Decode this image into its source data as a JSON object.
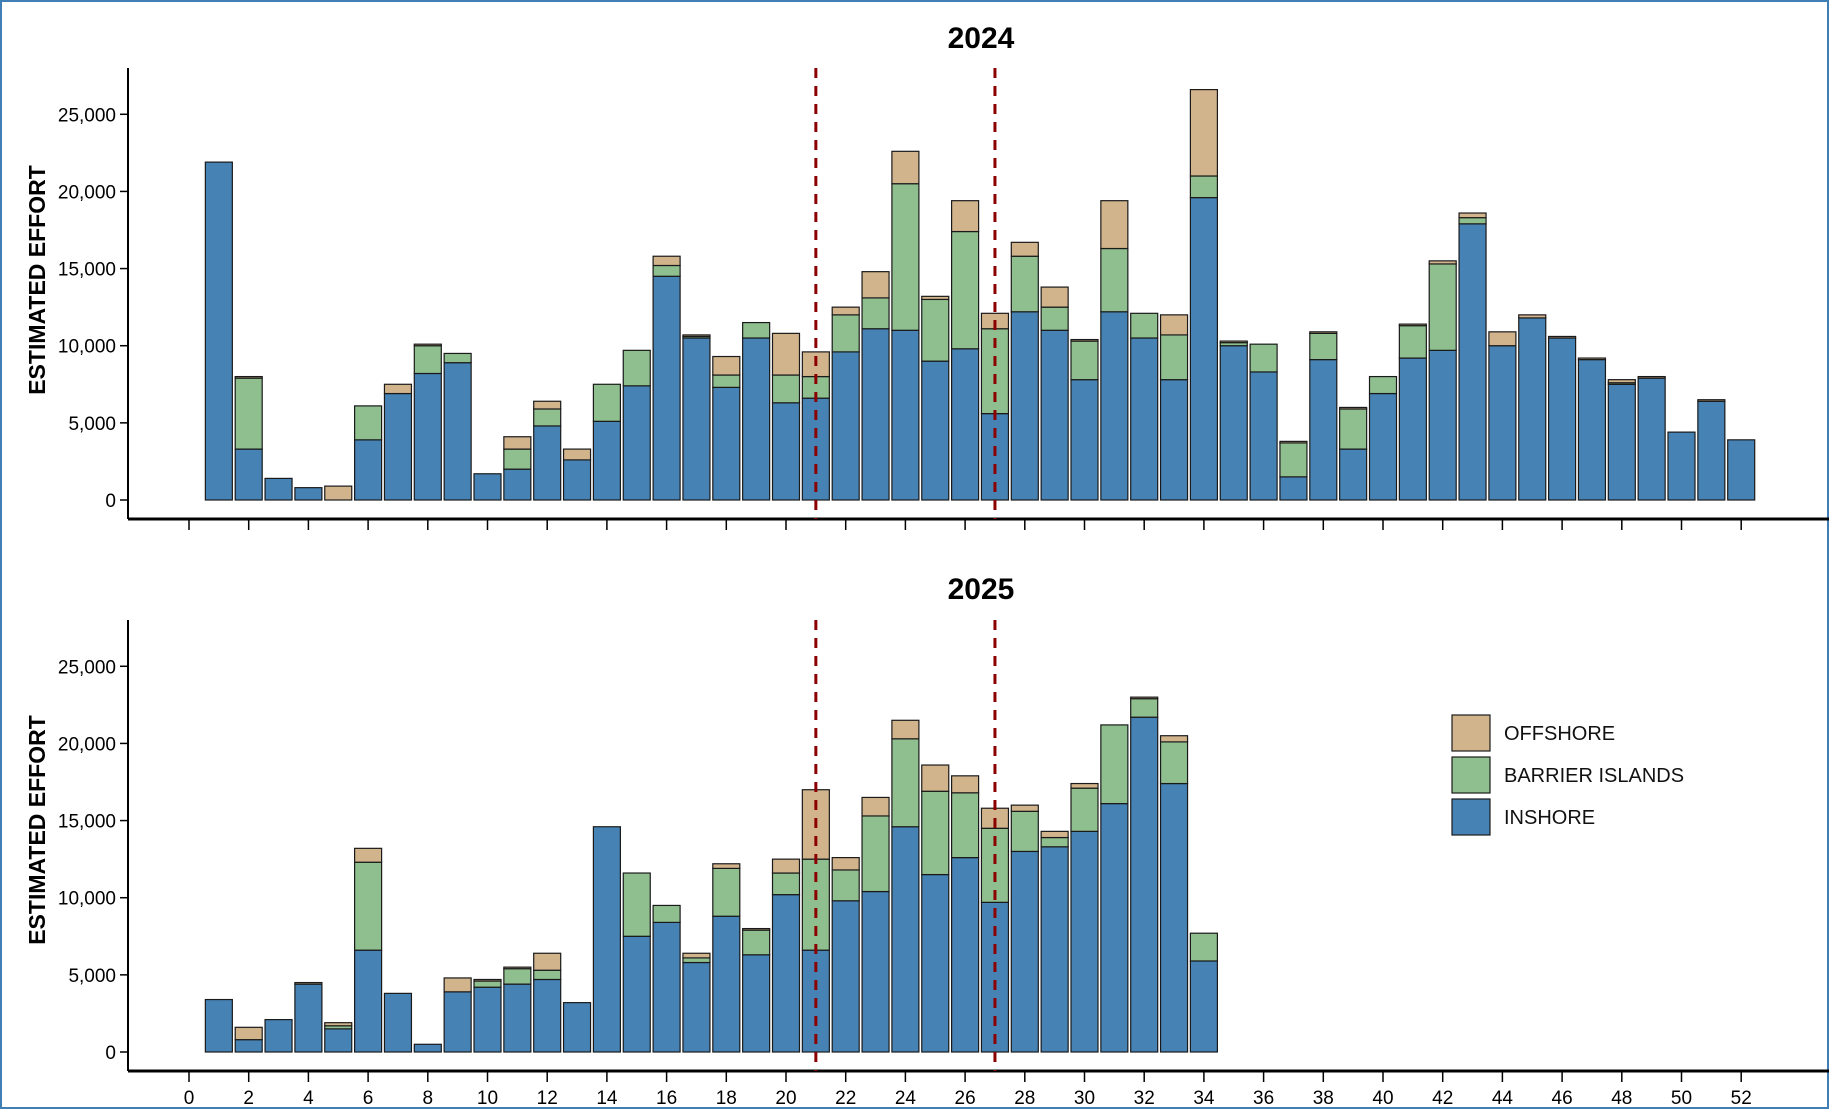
{
  "colors": {
    "offshore": "#d2b48c",
    "barrier": "#8fbf8f",
    "inshore": "#4682b4",
    "marker": "#8b0000",
    "frame": "#3f7fb5"
  },
  "chart_data": [
    {
      "type": "bar",
      "stacked": true,
      "title": "2024",
      "ylabel": "ESTIMATED EFFORT",
      "ylim": [
        0,
        28000
      ],
      "yticks": [
        "0",
        "5,000",
        "10,000",
        "15,000",
        "20,000",
        "25,000"
      ],
      "xlim": [
        0,
        53
      ],
      "x_tick_labels": [],
      "marker_weeks": [
        21,
        27
      ],
      "weeks": [
        1,
        2,
        3,
        4,
        5,
        6,
        7,
        8,
        9,
        10,
        11,
        12,
        13,
        14,
        15,
        16,
        17,
        18,
        19,
        20,
        21,
        22,
        23,
        24,
        25,
        26,
        27,
        28,
        29,
        30,
        31,
        32,
        33,
        34,
        35,
        36,
        37,
        38,
        39,
        40,
        41,
        42,
        43,
        44,
        45,
        46,
        47,
        48,
        49,
        50,
        51,
        52
      ],
      "series": [
        {
          "name": "INSHORE",
          "values": [
            21900,
            3300,
            1400,
            800,
            0,
            3900,
            6900,
            8200,
            8900,
            1700,
            2000,
            4800,
            2600,
            5100,
            7400,
            14500,
            10500,
            7300,
            10500,
            6300,
            6600,
            9600,
            11100,
            11000,
            9000,
            9800,
            5600,
            12200,
            11000,
            7800,
            12200,
            10500,
            7800,
            19600,
            10000,
            8300,
            1500,
            9100,
            3300,
            6900,
            9200,
            9700,
            17900,
            10000,
            11800,
            10500,
            9100,
            7500,
            7900,
            4400,
            6400,
            3900
          ]
        },
        {
          "name": "BARRIER ISLANDS",
          "values": [
            0,
            4600,
            0,
            0,
            0,
            2200,
            0,
            1800,
            600,
            0,
            1300,
            1100,
            0,
            2400,
            2300,
            700,
            100,
            800,
            1000,
            1800,
            1400,
            2400,
            2000,
            9500,
            4000,
            7600,
            5500,
            3600,
            1500,
            2500,
            4100,
            1600,
            2900,
            1400,
            200,
            1800,
            2200,
            1700,
            2600,
            1100,
            2100,
            5600,
            400,
            0,
            0,
            0,
            0,
            100,
            0,
            0,
            0,
            0
          ]
        },
        {
          "name": "OFFSHORE",
          "values": [
            0,
            100,
            0,
            0,
            900,
            0,
            600,
            100,
            0,
            0,
            800,
            500,
            700,
            0,
            0,
            600,
            100,
            1200,
            0,
            2700,
            1600,
            500,
            1700,
            2100,
            200,
            2000,
            1000,
            900,
            1300,
            100,
            3100,
            0,
            1300,
            5600,
            100,
            0,
            100,
            100,
            100,
            0,
            100,
            200,
            300,
            900,
            200,
            100,
            100,
            200,
            100,
            0,
            100,
            0
          ]
        }
      ]
    },
    {
      "type": "bar",
      "stacked": true,
      "title": "2025",
      "ylabel": "ESTIMATED EFFORT",
      "ylim": [
        0,
        28000
      ],
      "yticks": [
        "0",
        "5,000",
        "10,000",
        "15,000",
        "20,000",
        "25,000"
      ],
      "xlim": [
        0,
        53
      ],
      "x_tick_labels": [
        "0",
        "2",
        "4",
        "6",
        "8",
        "10",
        "12",
        "14",
        "16",
        "18",
        "20",
        "22",
        "24",
        "26",
        "28",
        "30",
        "32",
        "34",
        "36",
        "38",
        "40",
        "42",
        "44",
        "46",
        "48",
        "50",
        "52"
      ],
      "marker_weeks": [
        21,
        27
      ],
      "weeks": [
        1,
        2,
        3,
        4,
        5,
        6,
        7,
        8,
        9,
        10,
        11,
        12,
        13,
        14,
        15,
        16,
        17,
        18,
        19,
        20,
        21,
        22,
        23,
        24,
        25,
        26,
        27,
        28,
        29,
        30,
        31,
        32,
        33,
        34
      ],
      "series": [
        {
          "name": "INSHORE",
          "values": [
            3400,
            800,
            2100,
            4400,
            1500,
            6600,
            3800,
            500,
            3900,
            4200,
            4400,
            4700,
            3200,
            14600,
            7500,
            8400,
            5800,
            8800,
            6300,
            10200,
            6600,
            9800,
            10400,
            14600,
            11500,
            12600,
            9700,
            13000,
            13300,
            14300,
            16100,
            21700,
            17400,
            5900
          ]
        },
        {
          "name": "BARRIER ISLANDS",
          "values": [
            0,
            0,
            0,
            0,
            200,
            5700,
            0,
            0,
            0,
            400,
            1000,
            600,
            0,
            0,
            4100,
            1100,
            300,
            3100,
            1600,
            1400,
            5900,
            2000,
            4900,
            5700,
            5400,
            4200,
            4800,
            2600,
            600,
            2800,
            5100,
            1200,
            2700,
            1800
          ]
        },
        {
          "name": "OFFSHORE",
          "values": [
            0,
            800,
            0,
            100,
            200,
            900,
            0,
            0,
            900,
            100,
            100,
            1100,
            0,
            0,
            0,
            0,
            300,
            300,
            100,
            900,
            4500,
            800,
            1200,
            1200,
            1700,
            1100,
            1300,
            400,
            400,
            300,
            0,
            100,
            400,
            0
          ]
        }
      ]
    }
  ],
  "legend": [
    {
      "label": "OFFSHORE",
      "color_key": "offshore"
    },
    {
      "label": "BARRIER ISLANDS",
      "color_key": "barrier"
    },
    {
      "label": "INSHORE",
      "color_key": "inshore"
    }
  ]
}
